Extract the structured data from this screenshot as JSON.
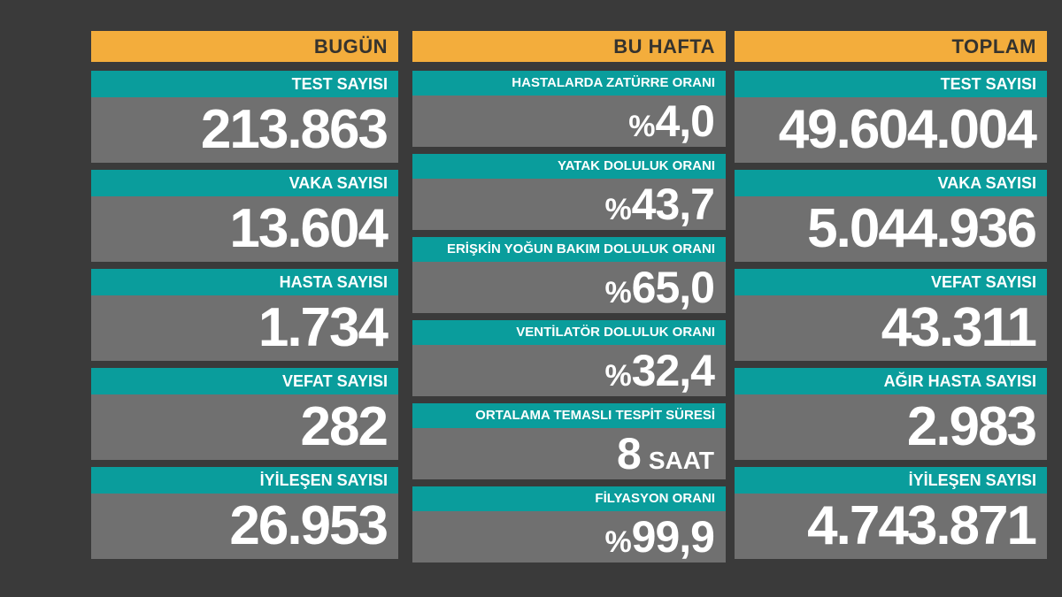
{
  "colors": {
    "background": "#3a3a3a",
    "header_orange": "#f3ad3c",
    "header_text": "#35332e",
    "label_teal": "#0a9d9c",
    "body_gray": "#707070",
    "value_white": "#ffffff"
  },
  "columns": {
    "today": {
      "header": "BUGÜN",
      "cards": [
        {
          "label": "TEST SAYISI",
          "value": "213.863"
        },
        {
          "label": "VAKA SAYISI",
          "value": "13.604"
        },
        {
          "label": "HASTA SAYISI",
          "value": "1.734"
        },
        {
          "label": "VEFAT SAYISI",
          "value": "282"
        },
        {
          "label": "İYİLEŞEN SAYISI",
          "value": "26.953"
        }
      ]
    },
    "this_week": {
      "header": "BU HAFTA",
      "cards": [
        {
          "label": "HASTALARDA ZATÜRRE ORANI",
          "prefix": "%",
          "value": "4,0",
          "suffix": ""
        },
        {
          "label": "YATAK DOLULUK ORANI",
          "prefix": "%",
          "value": "43,7",
          "suffix": ""
        },
        {
          "label": "ERİŞKİN YOĞUN BAKIM DOLULUK ORANI",
          "prefix": "%",
          "value": "65,0",
          "suffix": ""
        },
        {
          "label": "VENTİLATÖR DOLULUK ORANI",
          "prefix": "%",
          "value": "32,4",
          "suffix": ""
        },
        {
          "label": "ORTALAMA TEMASLI TESPİT SÜRESİ",
          "prefix": "",
          "value": "8",
          "suffix": "SAAT"
        },
        {
          "label": "FİLYASYON ORANI",
          "prefix": "%",
          "value": "99,9",
          "suffix": ""
        }
      ]
    },
    "total": {
      "header": "TOPLAM",
      "cards": [
        {
          "label": "TEST SAYISI",
          "value": "49.604.004"
        },
        {
          "label": "VAKA SAYISI",
          "value": "5.044.936"
        },
        {
          "label": "VEFAT SAYISI",
          "value": "43.311"
        },
        {
          "label": "AĞIR HASTA SAYISI",
          "value": "2.983"
        },
        {
          "label": "İYİLEŞEN SAYISI",
          "value": "4.743.871"
        }
      ]
    }
  },
  "chart_data": {
    "type": "table",
    "groups": [
      {
        "header": "BUGÜN",
        "rows": [
          {
            "label": "TEST SAYISI",
            "value": 213863
          },
          {
            "label": "VAKA SAYISI",
            "value": 13604
          },
          {
            "label": "HASTA SAYISI",
            "value": 1734
          },
          {
            "label": "VEFAT SAYISI",
            "value": 282
          },
          {
            "label": "İYİLEŞEN SAYISI",
            "value": 26953
          }
        ]
      },
      {
        "header": "BU HAFTA",
        "rows": [
          {
            "label": "HASTALARDA ZATÜRRE ORANI",
            "value": 4.0,
            "unit": "%"
          },
          {
            "label": "YATAK DOLULUK ORANI",
            "value": 43.7,
            "unit": "%"
          },
          {
            "label": "ERİŞKİN YOĞUN BAKIM DOLULUK ORANI",
            "value": 65.0,
            "unit": "%"
          },
          {
            "label": "VENTİLATÖR DOLULUK ORANI",
            "value": 32.4,
            "unit": "%"
          },
          {
            "label": "ORTALAMA TEMASLI TESPİT SÜRESİ",
            "value": 8,
            "unit": "SAAT"
          },
          {
            "label": "FİLYASYON ORANI",
            "value": 99.9,
            "unit": "%"
          }
        ]
      },
      {
        "header": "TOPLAM",
        "rows": [
          {
            "label": "TEST SAYISI",
            "value": 49604004
          },
          {
            "label": "VAKA SAYISI",
            "value": 5044936
          },
          {
            "label": "VEFAT SAYISI",
            "value": 43311
          },
          {
            "label": "AĞIR HASTA SAYISI",
            "value": 2983
          },
          {
            "label": "İYİLEŞEN SAYISI",
            "value": 4743871
          }
        ]
      }
    ]
  }
}
